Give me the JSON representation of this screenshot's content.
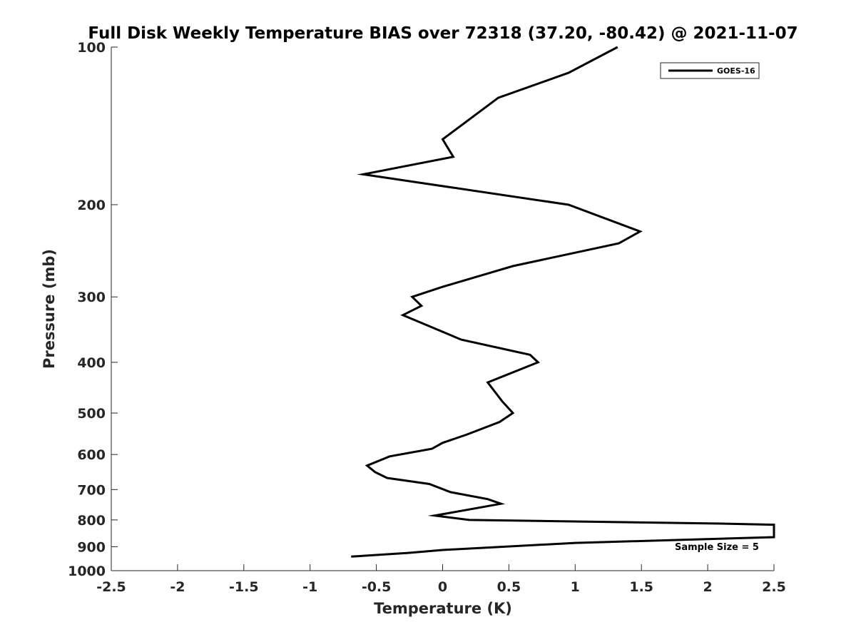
{
  "chart_data": {
    "type": "line",
    "title": "Full Disk Weekly Temperature BIAS over 72318 (37.20, -80.42) @ 2021-11-07",
    "xlabel": "Temperature (K)",
    "ylabel": "Pressure (mb)",
    "xlim": [
      -2.5,
      2.5
    ],
    "ylim": [
      100,
      1000
    ],
    "y_scale": "log",
    "y_reversed": true,
    "grid": false,
    "legend_position": "top-right",
    "x_ticks": [
      {
        "value": -2.5,
        "label": "-2.5"
      },
      {
        "value": -2,
        "label": "-2"
      },
      {
        "value": -1.5,
        "label": "-1.5"
      },
      {
        "value": -1,
        "label": "-1"
      },
      {
        "value": -0.5,
        "label": "-0.5"
      },
      {
        "value": 0,
        "label": "0"
      },
      {
        "value": 0.5,
        "label": "0.5"
      },
      {
        "value": 1,
        "label": "1"
      },
      {
        "value": 1.5,
        "label": "1.5"
      },
      {
        "value": 2,
        "label": "2"
      },
      {
        "value": 2.5,
        "label": "2.5"
      }
    ],
    "y_ticks": [
      {
        "value": 100,
        "label": "100"
      },
      {
        "value": 200,
        "label": "200"
      },
      {
        "value": 300,
        "label": "300"
      },
      {
        "value": 400,
        "label": "400"
      },
      {
        "value": 500,
        "label": "500"
      },
      {
        "value": 600,
        "label": "600"
      },
      {
        "value": 700,
        "label": "700"
      },
      {
        "value": 800,
        "label": "800"
      },
      {
        "value": 900,
        "label": "900"
      },
      {
        "value": 1000,
        "label": "1000"
      }
    ],
    "series": [
      {
        "name": "GOES-16",
        "color": "#000000",
        "points": [
          {
            "x": 1.32,
            "y": 100
          },
          {
            "x": 0.95,
            "y": 112
          },
          {
            "x": 0.42,
            "y": 125
          },
          {
            "x": 0.0,
            "y": 150
          },
          {
            "x": 0.08,
            "y": 162
          },
          {
            "x": -0.6,
            "y": 175
          },
          {
            "x": 0.95,
            "y": 200
          },
          {
            "x": 1.49,
            "y": 225
          },
          {
            "x": 1.33,
            "y": 237
          },
          {
            "x": 0.53,
            "y": 262
          },
          {
            "x": 0.0,
            "y": 287
          },
          {
            "x": -0.23,
            "y": 300
          },
          {
            "x": -0.16,
            "y": 312
          },
          {
            "x": -0.3,
            "y": 325
          },
          {
            "x": 0.14,
            "y": 362
          },
          {
            "x": 0.66,
            "y": 387
          },
          {
            "x": 0.72,
            "y": 400
          },
          {
            "x": 0.46,
            "y": 425
          },
          {
            "x": 0.34,
            "y": 437
          },
          {
            "x": 0.45,
            "y": 475
          },
          {
            "x": 0.53,
            "y": 500
          },
          {
            "x": 0.43,
            "y": 520
          },
          {
            "x": 0.18,
            "y": 550
          },
          {
            "x": 0.0,
            "y": 570
          },
          {
            "x": -0.08,
            "y": 585
          },
          {
            "x": -0.4,
            "y": 605
          },
          {
            "x": -0.57,
            "y": 630
          },
          {
            "x": -0.51,
            "y": 648
          },
          {
            "x": -0.42,
            "y": 665
          },
          {
            "x": -0.1,
            "y": 683
          },
          {
            "x": 0.06,
            "y": 708
          },
          {
            "x": 0.34,
            "y": 730
          },
          {
            "x": 0.44,
            "y": 745
          },
          {
            "x": -0.06,
            "y": 785
          },
          {
            "x": 0.2,
            "y": 800
          },
          {
            "x": 2.1,
            "y": 813
          },
          {
            "x": 2.5,
            "y": 817
          },
          {
            "x": 2.5,
            "y": 863
          },
          {
            "x": 1.0,
            "y": 885
          },
          {
            "x": 0.0,
            "y": 913
          },
          {
            "x": -0.26,
            "y": 925
          },
          {
            "x": -0.69,
            "y": 940
          }
        ]
      }
    ],
    "annotation": "Sample Size = 5"
  }
}
